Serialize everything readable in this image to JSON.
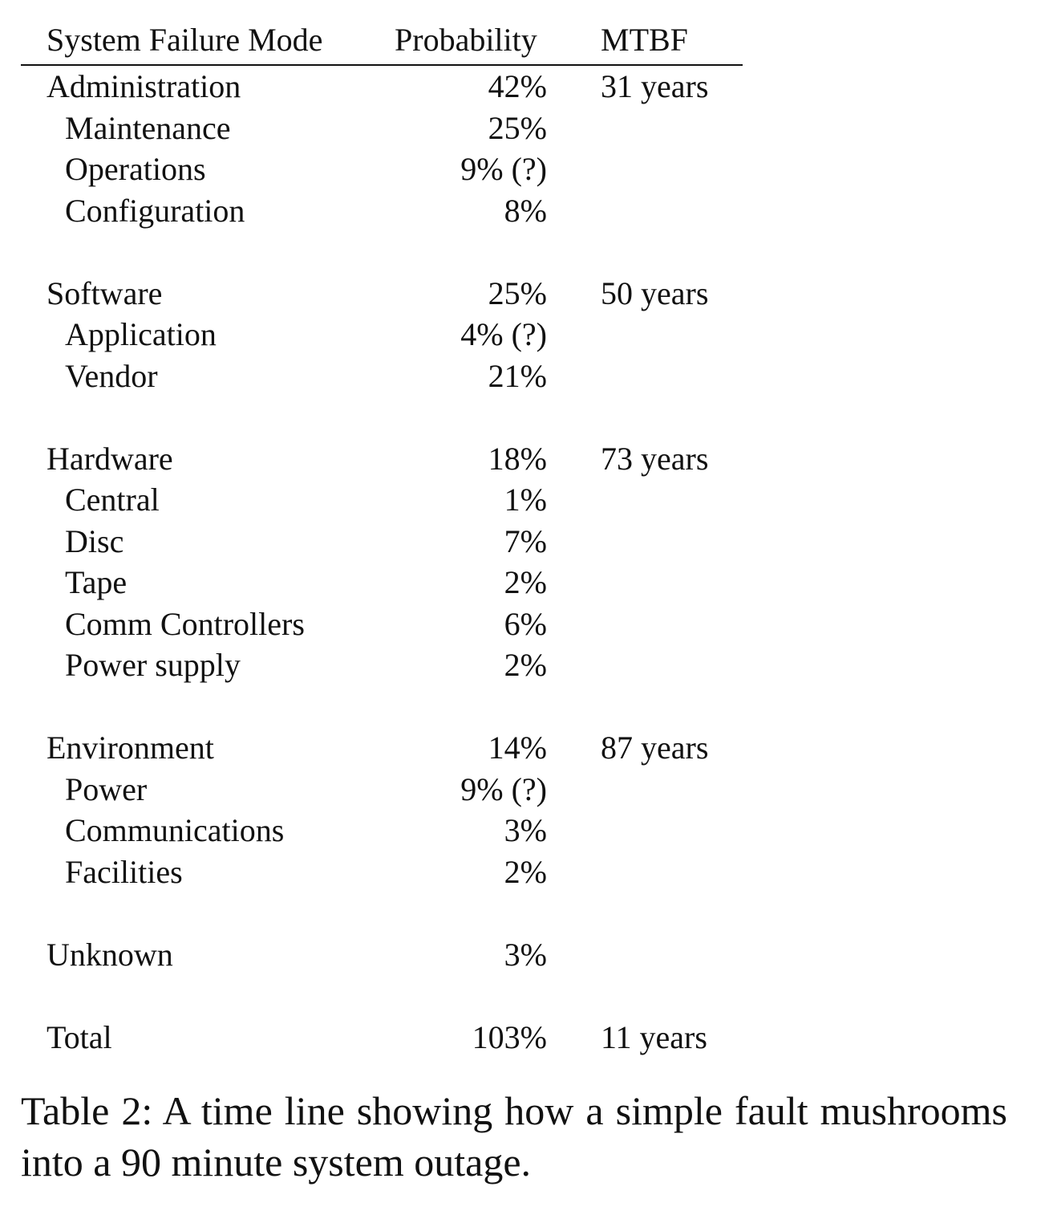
{
  "table": {
    "headers": {
      "mode": "System Failure Mode",
      "probability": "Probability",
      "mtbf": "MTBF"
    },
    "groups": [
      {
        "name": "Administration",
        "probability": "42%",
        "mtbf": "31 years",
        "items": [
          {
            "name": "Maintenance",
            "probability": "25%"
          },
          {
            "name": "Operations",
            "probability": "9% (?)"
          },
          {
            "name": "Configuration",
            "probability": "8%"
          }
        ]
      },
      {
        "name": "Software",
        "probability": "25%",
        "mtbf": "50 years",
        "items": [
          {
            "name": "Application",
            "probability": "4% (?)"
          },
          {
            "name": "Vendor",
            "probability": "21%"
          }
        ]
      },
      {
        "name": "Hardware",
        "probability": "18%",
        "mtbf": "73 years",
        "items": [
          {
            "name": "Central",
            "probability": "1%"
          },
          {
            "name": "Disc",
            "probability": "7%"
          },
          {
            "name": "Tape",
            "probability": "2%"
          },
          {
            "name": "Comm Controllers",
            "probability": "6%"
          },
          {
            "name": "Power supply",
            "probability": "2%"
          }
        ]
      },
      {
        "name": "Environment",
        "probability": "14%",
        "mtbf": "87 years",
        "items": [
          {
            "name": "Power",
            "probability": "9% (?)"
          },
          {
            "name": "Communications",
            "probability": "3%"
          },
          {
            "name": "Facilities",
            "probability": "2%"
          }
        ]
      },
      {
        "name": "Unknown",
        "probability": "3%",
        "mtbf": "",
        "items": []
      },
      {
        "name": "Total",
        "probability": "103%",
        "mtbf": "11 years",
        "items": []
      }
    ]
  },
  "caption": "Table 2: A time line showing how a simple fault mushrooms into a 90 minute system outage."
}
